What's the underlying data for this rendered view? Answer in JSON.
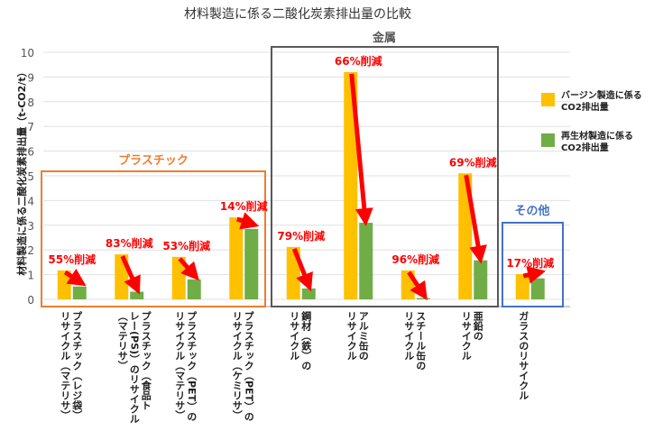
{
  "chart_data": {
    "type": "bar",
    "title": "材料製造に係る二酸化炭素排出量の比較",
    "ylabel": "材料製造に係る二酸化炭素排出量（t-CO2/t）",
    "ylim": [
      0,
      10
    ],
    "yticks": [
      "0",
      "1",
      "2",
      "3",
      "4",
      "5",
      "6",
      "7",
      "8",
      "9",
      "10"
    ],
    "grid": true,
    "legend_position": "right",
    "categories": [
      "プラスチック（レジ袋）\nリサイクル（マテリサ）",
      "プラスチック（食品ト\nレー(PS)）のリサイクル\n（マテリサ）",
      "プラスチック（PET）の\nリサイクル（マテリサ）",
      "プラスチック（PET）の\nリサイクル（ケミリサ）",
      "鋼材（鉄）の\nリサイクル",
      "アルミ缶の\nリサイクル",
      "スチール缶の\nリサイクル",
      "亜鉛の\nリサイクル",
      "ガラスのリサイクル"
    ],
    "series": [
      {
        "name": "バージン製造に係る\nCO2排出量",
        "color": "#FFC000",
        "values": [
          1.17,
          1.82,
          1.72,
          3.32,
          2.12,
          9.2,
          1.17,
          5.1,
          1.02
        ]
      },
      {
        "name": "再生材製造に係る\nCO2排出量",
        "color": "#70AD47",
        "values": [
          0.52,
          0.31,
          0.81,
          2.85,
          0.44,
          3.1,
          0.05,
          1.58,
          0.85
        ]
      }
    ],
    "annotations": [
      "55%削減",
      "83%削減",
      "53%削減",
      "14%削減",
      "79%削減",
      "66%削減",
      "96%削減",
      "69%削減",
      "17%削減"
    ],
    "annotation_color": "#FF0000",
    "groups": [
      {
        "label": "プラスチック",
        "color": "#ED7D31",
        "from": 0,
        "to": 3
      },
      {
        "label": "金属",
        "color": "#595959",
        "from": 4,
        "to": 7
      },
      {
        "label": "その他",
        "color": "#4472C4",
        "from": 8,
        "to": 8
      }
    ]
  }
}
